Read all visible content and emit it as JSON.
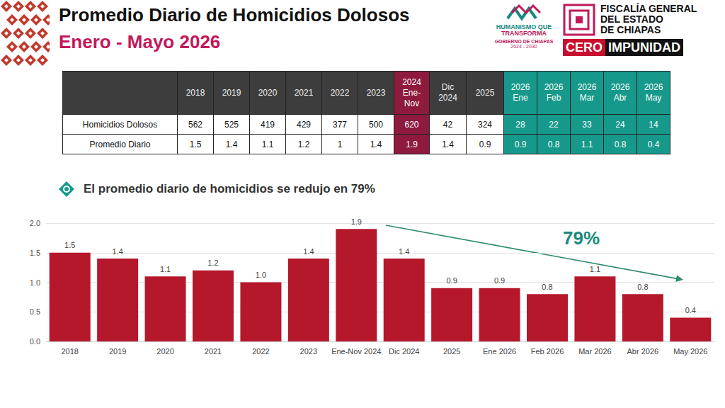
{
  "header": {
    "title": "Promedio Diario de Homicidios Dolosos",
    "subtitle": "Enero - Mayo 2026",
    "logos": {
      "gobierno": {
        "lines": [
          "HUMANISMO QUE",
          "TRANSFORMA"
        ],
        "name": "GOBIERNO DE CHIAPAS",
        "period": "2024 - 2030"
      },
      "fiscalia": {
        "lines": [
          "FISCALÍA GENERAL",
          "DEL ESTADO",
          "DE CHIAPAS"
        ],
        "slogan": [
          "CERO",
          "IMPUNIDAD"
        ]
      }
    }
  },
  "table": {
    "columns": [
      "2018",
      "2019",
      "2020",
      "2021",
      "2022",
      "2023",
      "2024 Ene-Nov",
      "Dic 2024",
      "2025",
      "2026 Ene",
      "2026 Feb",
      "2026 Mar",
      "2026 Abr",
      "2026 May"
    ],
    "rows": [
      {
        "label": "Homicidios Dolosos",
        "values": [
          562,
          525,
          419,
          429,
          377,
          500,
          620,
          42,
          324,
          28,
          22,
          33,
          24,
          14
        ]
      },
      {
        "label": "Promedio Diario",
        "values": [
          1.5,
          1.4,
          1.1,
          1.2,
          1,
          1.4,
          1.9,
          1.4,
          0.9,
          0.9,
          0.8,
          1.1,
          0.8,
          0.4
        ]
      }
    ]
  },
  "chart_data": {
    "type": "bar",
    "subtitle": "El promedio diario de homicidios se redujo en 79%",
    "annotation": "79%",
    "categories": [
      "2018",
      "2019",
      "2020",
      "2021",
      "2022",
      "2023",
      "Ene-Nov 2024",
      "Dic 2024",
      "2025",
      "Ene 2026",
      "Feb 2026",
      "Mar 2026",
      "Abr 2026",
      "May 2026"
    ],
    "values": [
      1.5,
      1.4,
      1.1,
      1.2,
      1.0,
      1.4,
      1.9,
      1.4,
      0.9,
      0.9,
      0.8,
      1.1,
      0.8,
      0.4
    ],
    "value_labels": [
      "1.5",
      "1.4",
      "1.1",
      "1.2",
      "1.0",
      "1.4",
      "1.9",
      "1.4",
      "0.9",
      "0.9",
      "0.8",
      "1.1",
      "0.8",
      "0.4"
    ],
    "color": "#b5172b",
    "ylim": [
      0,
      2
    ],
    "yticks": [
      {
        "value": 0,
        "label": "0.0"
      },
      0.5,
      {
        "value": 1,
        "label": "1.0"
      },
      {
        "value": 1.5,
        "label": "1.5"
      },
      {
        "value": 2,
        "label": "2.0"
      }
    ],
    "grid": true,
    "data_labels": true
  }
}
